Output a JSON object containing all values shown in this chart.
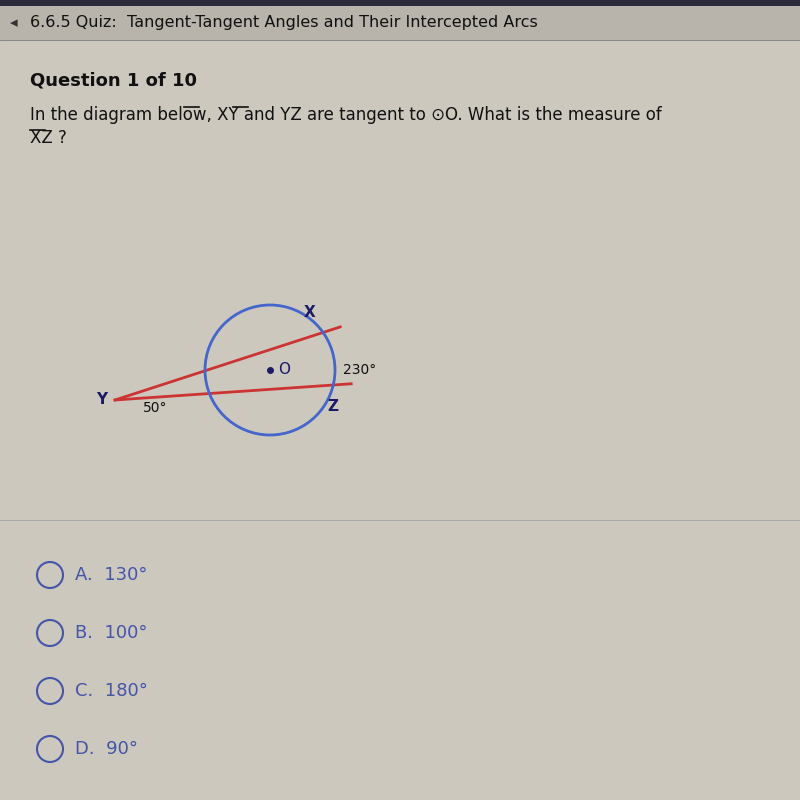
{
  "bg_color": "#ccc8be",
  "header_bg": "#b8b4ac",
  "header_text": "6.6.5 Quiz:  Tangent-Tangent Angles and Their Intercepted Arcs",
  "header_fontsize": 11.5,
  "question_label": "Question 1 of 10",
  "circle_color": "#4466cc",
  "tangent_color": "#cc3333",
  "label_color": "#1a1a66",
  "text_color": "#111111",
  "angle_label": "50°",
  "arc_label": "230°",
  "answers": [
    {
      "letter": "A",
      "value": "130°"
    },
    {
      "letter": "B",
      "value": "100°"
    },
    {
      "letter": "C",
      "value": "180°"
    },
    {
      "letter": "D",
      "value": "90°"
    }
  ],
  "answer_color": "#4455aa",
  "divider_color": "#aaaaaa"
}
